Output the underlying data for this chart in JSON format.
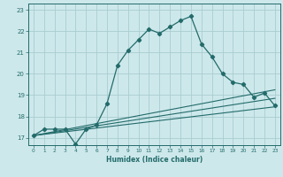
{
  "xlabel": "Humidex (Indice chaleur)",
  "xlim": [
    -0.5,
    23.5
  ],
  "ylim": [
    16.65,
    23.3
  ],
  "yticks": [
    17,
    18,
    19,
    20,
    21,
    22,
    23
  ],
  "xticks": [
    0,
    1,
    2,
    3,
    4,
    5,
    6,
    7,
    8,
    9,
    10,
    11,
    12,
    13,
    14,
    15,
    16,
    17,
    18,
    19,
    20,
    21,
    22,
    23
  ],
  "bg_color": "#cde8eb",
  "grid_color": "#a8cdd0",
  "line_color": "#236b6b",
  "line1_x": [
    0,
    1,
    2,
    3,
    4,
    5,
    6,
    7,
    8,
    9,
    10,
    11,
    12,
    13,
    14,
    15,
    16,
    17,
    18,
    19,
    20,
    21,
    22,
    23
  ],
  "line1_y": [
    17.1,
    17.4,
    17.4,
    17.4,
    16.7,
    17.4,
    17.6,
    18.6,
    20.4,
    21.1,
    21.6,
    22.1,
    21.9,
    22.2,
    22.5,
    22.7,
    21.4,
    20.8,
    20.0,
    19.6,
    19.5,
    18.9,
    19.1,
    18.5
  ],
  "line2_start_y": 17.1,
  "line2_end_y": 18.45,
  "line3_start_y": 17.1,
  "line3_end_y": 18.85,
  "line4_start_y": 17.1,
  "line4_end_y": 19.25
}
